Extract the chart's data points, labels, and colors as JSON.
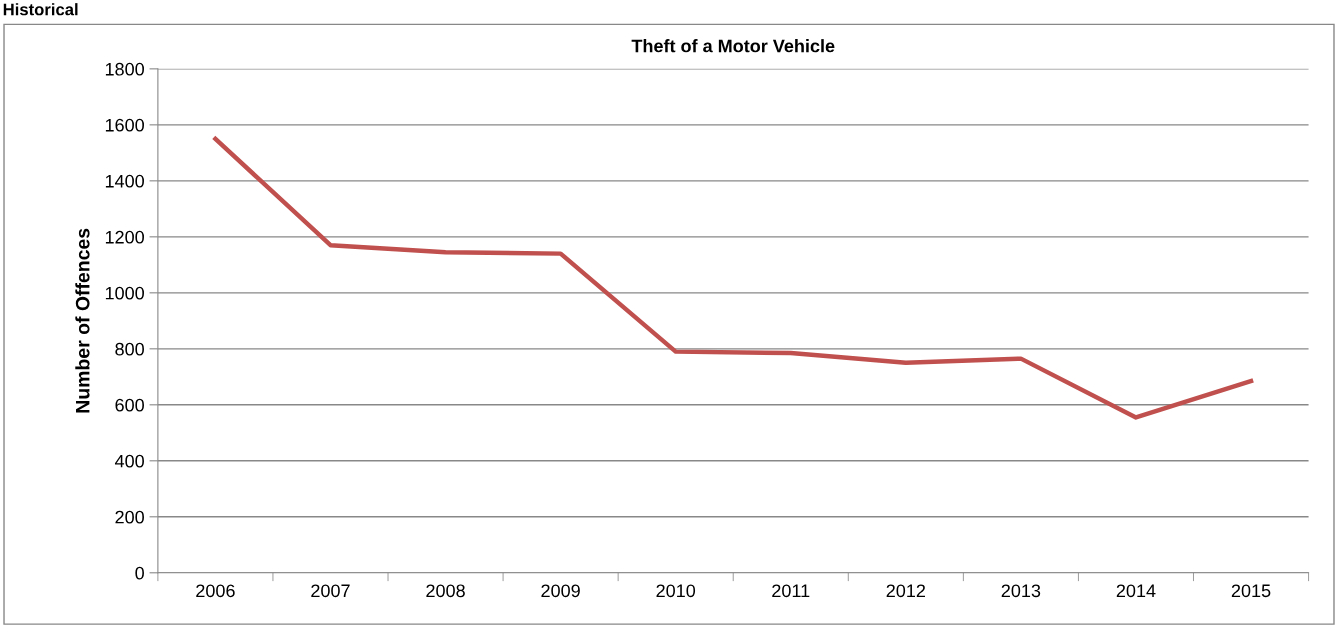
{
  "chart_data": {
    "type": "line",
    "title": "Theft of a Motor Vehicle",
    "ylabel": "Number of Offences",
    "annotations": [
      "Historical"
    ],
    "categories": [
      "2006",
      "2007",
      "2008",
      "2009",
      "2010",
      "2011",
      "2012",
      "2013",
      "2014",
      "2015"
    ],
    "series": [
      {
        "color": "#c0504d",
        "values": [
          1550,
          1170,
          1145,
          1140,
          790,
          785,
          750,
          765,
          555,
          685
        ]
      }
    ],
    "ylim": [
      0,
      1800
    ],
    "yticks": [
      0,
      200,
      400,
      600,
      800,
      1000,
      1200,
      1400,
      1600,
      1800
    ],
    "grid": "y",
    "legend": false,
    "marker": "none",
    "line_style": "solid"
  }
}
